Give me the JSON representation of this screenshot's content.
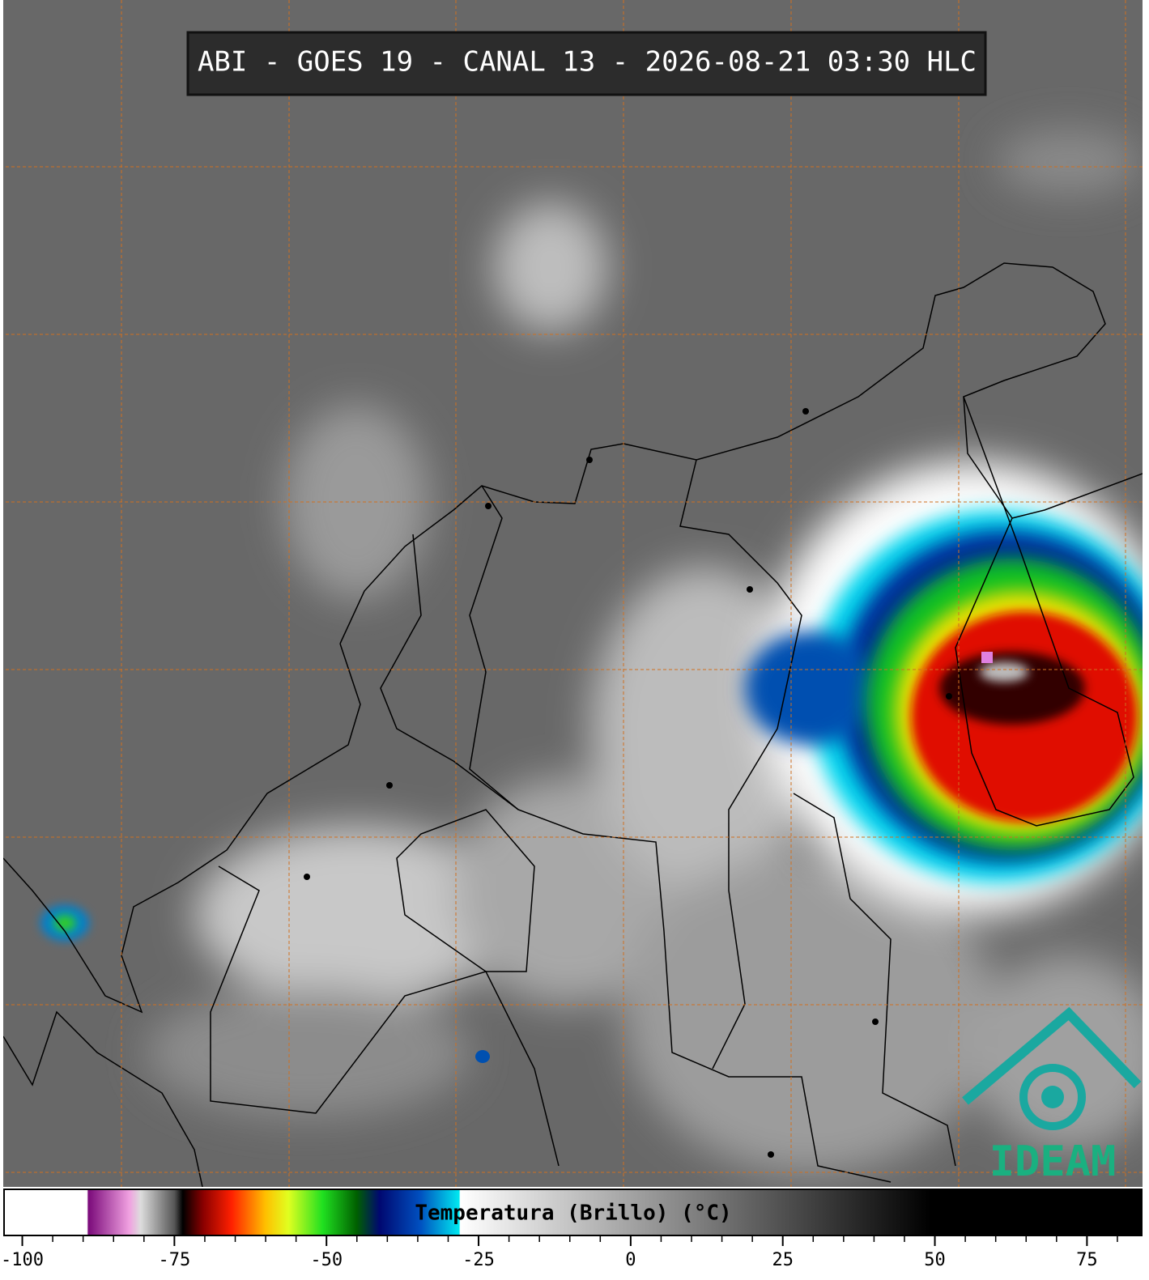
{
  "title": "ABI - GOES 19 - CANAL 13 - 2026-08-21 03:30 HLC",
  "logo": "IDEAM",
  "chart_data": {
    "type": "colorbar",
    "xlabel": "Temperatura (Brillo) (°C)",
    "xlim": [
      -103,
      84
    ],
    "xticks": [
      -100,
      -75,
      -50,
      -25,
      0,
      25,
      50,
      75
    ],
    "xminorticks": [
      -95,
      -90,
      -85,
      -80,
      -70,
      -65,
      -60,
      -55,
      -45,
      -40,
      -35,
      -30,
      -20,
      -15,
      -10,
      -5,
      5,
      10,
      15,
      20,
      30,
      35,
      40,
      45,
      55,
      60,
      65,
      70,
      80
    ]
  }
}
